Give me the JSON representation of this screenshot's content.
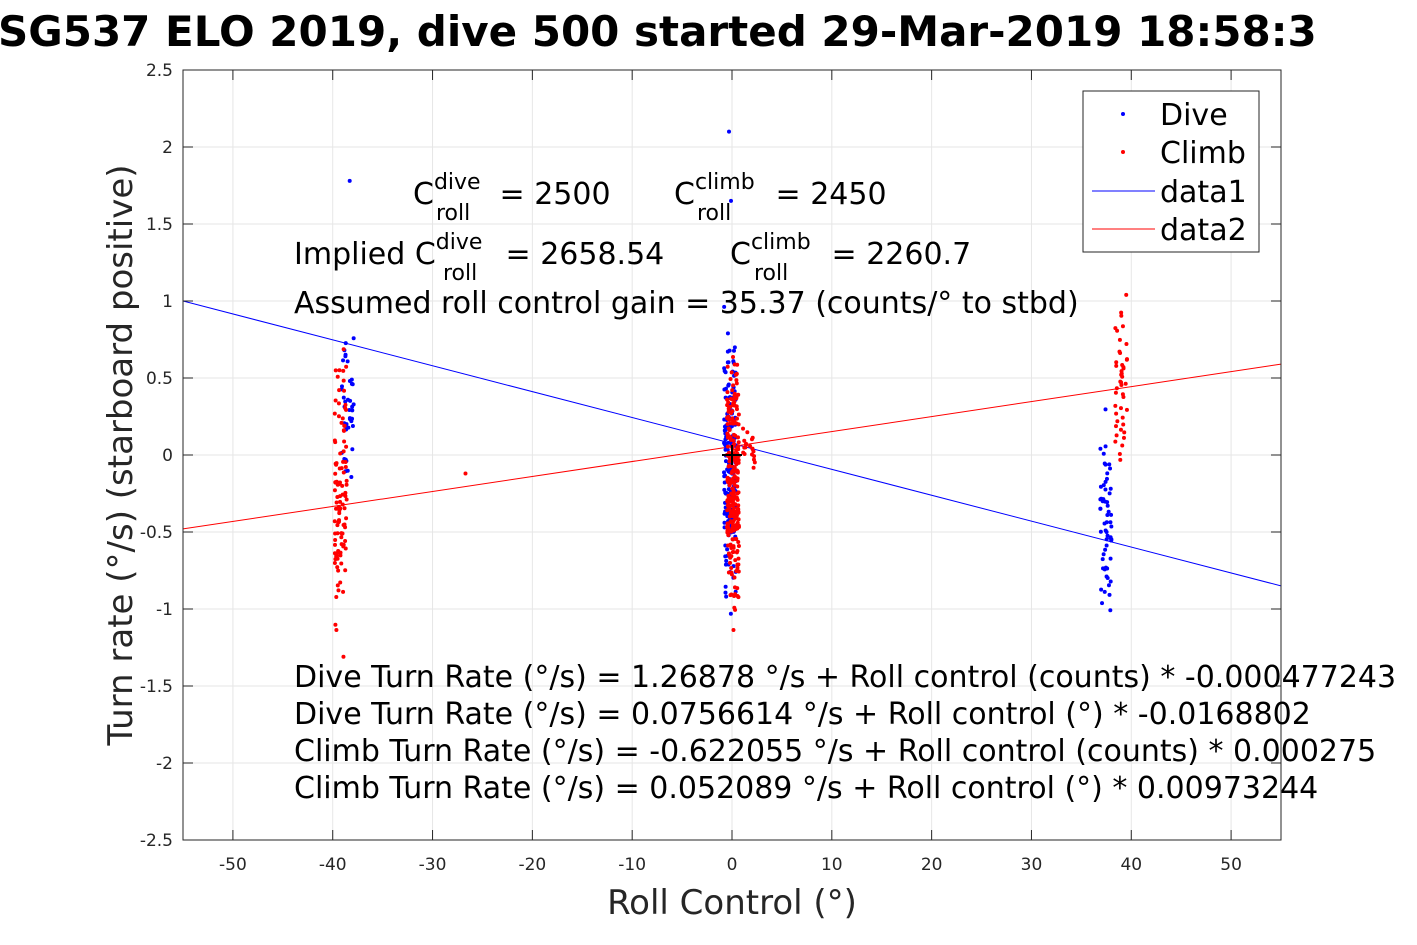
{
  "chart_data": {
    "type": "scatter",
    "title": "SG537 ELO 2019, dive 500 started 29-Mar-2019 18:58:3",
    "xlabel": "Roll Control (°)",
    "ylabel": "Turn rate (°/s) (starboard positive)",
    "xlim": [
      -55,
      55
    ],
    "ylim": [
      -2.5,
      2.5
    ],
    "x_ticks": [
      "-50",
      "-40",
      "-30",
      "-20",
      "-10",
      "0",
      "10",
      "20",
      "30",
      "40",
      "50"
    ],
    "y_ticks": [
      "2.5",
      "2",
      "1.5",
      "1",
      "0.5",
      "0",
      "-0.5",
      "-1",
      "-1.5",
      "-2",
      "-2.5"
    ],
    "grid": true,
    "legend_position": "top-right",
    "legend": [
      "Dive",
      "Climb",
      "data1",
      "data2"
    ],
    "colors": {
      "dive": "#0000ff",
      "climb": "#ff0000",
      "axes": "#262626",
      "grid": "#e6e6e6"
    },
    "series": [
      {
        "name": "Dive",
        "kind": "points",
        "color": "#0000ff",
        "clusters": [
          {
            "x": -38.5,
            "y_min": -0.6,
            "y_max": 1.15,
            "count": 40
          },
          {
            "x": -0.2,
            "y_min": -1.15,
            "y_max": 1.05,
            "count": 200
          },
          {
            "x": 37.5,
            "y_min": -1.25,
            "y_max": 0.4,
            "count": 60
          }
        ],
        "outliers": [
          {
            "x": -38.3,
            "y": 1.78
          },
          {
            "x": -0.3,
            "y": 2.1
          },
          {
            "x": -0.1,
            "y": 1.65
          }
        ]
      },
      {
        "name": "Climb",
        "kind": "points",
        "color": "#ff0000",
        "clusters": [
          {
            "x": -39.2,
            "y_min": -1.5,
            "y_max": 0.95,
            "count": 110
          },
          {
            "x": 0.1,
            "y_min": -1.35,
            "y_max": 0.9,
            "count": 260
          },
          {
            "x": 1.7,
            "y_min": -0.15,
            "y_max": 0.2,
            "count": 20
          },
          {
            "x": 39.0,
            "y_min": -0.4,
            "y_max": 1.3,
            "count": 45
          }
        ],
        "outliers": [
          {
            "x": -26.7,
            "y": -0.12
          }
        ]
      },
      {
        "name": "data1",
        "kind": "line",
        "color": "#0000ff",
        "x": [
          -55,
          55
        ],
        "y": [
          1.0,
          -0.85
        ]
      },
      {
        "name": "data2",
        "kind": "line",
        "color": "#ff0000",
        "x": [
          -55,
          55
        ],
        "y": [
          -0.48,
          0.59
        ]
      }
    ]
  },
  "annotations": {
    "c_dive_label": "C",
    "c_dive_sup": "dive",
    "c_dive_sub": "roll",
    "c_dive_value": " = 2500",
    "c_climb_label": "C",
    "c_climb_sup": "climb",
    "c_climb_sub": "roll",
    "c_climb_value": " = 2450",
    "implied_prefix": "Implied C",
    "implied_dive_sup": "dive",
    "implied_dive_sub": "roll",
    "implied_dive_value": " = 2658.54",
    "implied_climb_label": "C",
    "implied_climb_sup": "climb",
    "implied_climb_sub": "roll",
    "implied_climb_value": " = 2260.7",
    "gain": "Assumed roll control gain = 35.37 (counts/° to stbd)",
    "eq1": "Dive Turn Rate (°/s) = 1.26878 °/s + Roll control (counts) * -0.000477243",
    "eq2": "Dive Turn Rate (°/s) = 0.0756614 °/s + Roll control (°) * -0.0168802",
    "eq3": "Climb Turn Rate (°/s) = -0.622055 °/s + Roll control (counts) * 0.000275",
    "eq4": "Climb Turn Rate (°/s) = 0.052089 °/s + Roll control (°) * 0.00973244"
  }
}
